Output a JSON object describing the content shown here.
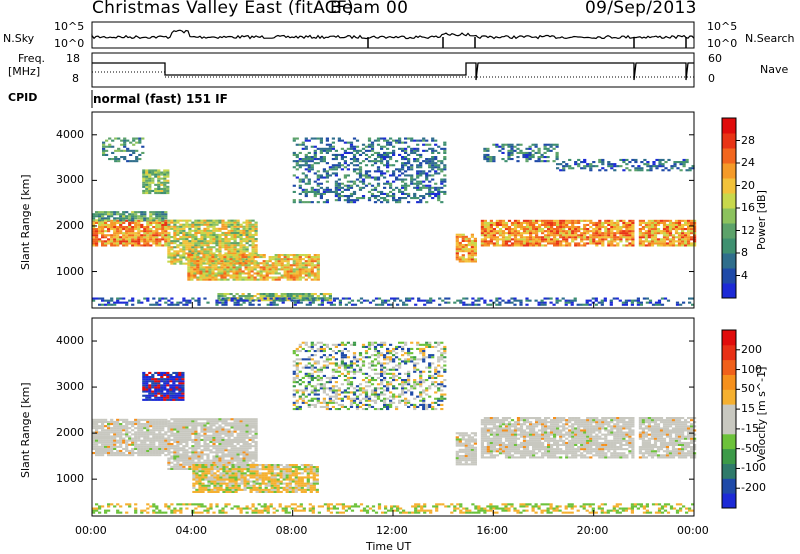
{
  "header": {
    "title": "Christmas Valley East (fitACF)",
    "beam": "Beam 00",
    "date": "09/Sep/2013"
  },
  "noise_panel": {
    "left_label": "N.Sky",
    "right_label": "N.Search",
    "left_ticks": [
      "10^5",
      "10^0"
    ],
    "right_ticks": [
      "10^5",
      "10^0"
    ]
  },
  "freq_panel": {
    "left_label_1": "Freq.",
    "left_label_2": "[MHz]",
    "right_label": "Nave",
    "left_ticks": [
      "18",
      "8"
    ],
    "right_ticks": [
      "60",
      "0"
    ]
  },
  "cpid": {
    "label": "CPID",
    "value": "normal (fast) 151 IF"
  },
  "chart_data": [
    {
      "type": "heatmap",
      "name": "power",
      "ylabel": "Slant Range [km]",
      "yticks": [
        1000,
        2000,
        3000,
        4000
      ],
      "ylim": [
        200,
        4500
      ],
      "xlim": [
        0,
        24
      ],
      "colorbar": {
        "label": "Power [dB]",
        "ticks": [
          4,
          8,
          12,
          16,
          20,
          24,
          28
        ],
        "range": [
          0,
          32
        ],
        "colors": [
          "#1c2ad6",
          "#1f4aa8",
          "#2f6e8c",
          "#3f9070",
          "#5ca26a",
          "#8cc25e",
          "#c8d84c",
          "#f2c23a",
          "#f59a28",
          "#f2661e",
          "#e83416",
          "#e00c0c"
        ]
      },
      "bands": [
        {
          "t0": 0.0,
          "t1": 2.9,
          "r0": 1550,
          "r1": 2100,
          "level": 0.72
        },
        {
          "t0": 0.0,
          "t1": 2.9,
          "r0": 2100,
          "r1": 2300,
          "level": 0.35
        },
        {
          "t0": 0.4,
          "t1": 2.0,
          "r0": 3400,
          "r1": 3900,
          "level": 0.3
        },
        {
          "t0": 2.0,
          "t1": 3.0,
          "r0": 2700,
          "r1": 3200,
          "level": 0.45
        },
        {
          "t0": 3.0,
          "t1": 6.5,
          "r0": 1150,
          "r1": 2100,
          "level": 0.55
        },
        {
          "t0": 3.8,
          "t1": 9.0,
          "r0": 800,
          "r1": 1350,
          "level": 0.62
        },
        {
          "t0": 5.0,
          "t1": 9.5,
          "r0": 350,
          "r1": 500,
          "level": 0.45
        },
        {
          "t0": 8.0,
          "t1": 14.0,
          "r0": 2500,
          "r1": 3900,
          "level": 0.22
        },
        {
          "t0": 14.5,
          "t1": 15.3,
          "r0": 1200,
          "r1": 1800,
          "level": 0.7
        },
        {
          "t0": 15.5,
          "t1": 21.6,
          "r0": 1550,
          "r1": 2100,
          "level": 0.72
        },
        {
          "t0": 21.8,
          "t1": 24.0,
          "r0": 1550,
          "r1": 2100,
          "level": 0.7
        },
        {
          "t0": 15.6,
          "t1": 18.5,
          "r0": 3400,
          "r1": 3800,
          "level": 0.22
        },
        {
          "t0": 18.5,
          "t1": 24.0,
          "r0": 3200,
          "r1": 3450,
          "level": 0.2
        },
        {
          "t0": 0.0,
          "t1": 24.0,
          "r0": 250,
          "r1": 420,
          "level": 0.15
        }
      ]
    },
    {
      "type": "heatmap",
      "name": "velocity",
      "xlabel": "Time UT",
      "ylabel": "Slant Range [km]",
      "yticks": [
        1000,
        2000,
        3000,
        4000
      ],
      "ylim": [
        200,
        4500
      ],
      "xlim": [
        0,
        24
      ],
      "xticks": [
        "00:00",
        "04:00",
        "08:00",
        "12:00",
        "16:00",
        "20:00",
        "00:00"
      ],
      "xtick_values": [
        0,
        4,
        8,
        12,
        16,
        20,
        24
      ],
      "colorbar": {
        "label": "Velocity [m s^-1]",
        "ticks": [
          "200",
          "100",
          "50",
          "15",
          "-15",
          "-50",
          "-100",
          "-200"
        ],
        "colors": [
          "#1c2ad6",
          "#1f4aa8",
          "#2f7a6a",
          "#3c9a48",
          "#6cc23a",
          "#c8c8c0",
          "#c8c8c0",
          "#f5b030",
          "#f5901c",
          "#f0601a",
          "#e83016",
          "#e00c0c"
        ]
      },
      "bands": [
        {
          "t0": 0.0,
          "t1": 2.9,
          "r0": 1500,
          "r1": 2300,
          "kind": "gray"
        },
        {
          "t0": 3.0,
          "t1": 6.5,
          "r0": 1200,
          "r1": 2300,
          "kind": "gray"
        },
        {
          "t0": 15.5,
          "t1": 21.6,
          "r0": 1450,
          "r1": 2350,
          "kind": "gray"
        },
        {
          "t0": 21.8,
          "t1": 24.0,
          "r0": 1450,
          "r1": 2350,
          "kind": "gray"
        },
        {
          "t0": 4.0,
          "t1": 9.0,
          "r0": 700,
          "r1": 1300,
          "kind": "orange"
        },
        {
          "t0": 8.0,
          "t1": 14.0,
          "r0": 2500,
          "r1": 3950,
          "kind": "mixed"
        },
        {
          "t0": 2.0,
          "t1": 3.6,
          "r0": 2700,
          "r1": 3300,
          "kind": "blue"
        },
        {
          "t0": 0.0,
          "t1": 24.0,
          "r0": 250,
          "r1": 450,
          "kind": "green"
        },
        {
          "t0": 14.5,
          "t1": 15.3,
          "r0": 1300,
          "r1": 2000,
          "kind": "gray"
        }
      ]
    }
  ]
}
